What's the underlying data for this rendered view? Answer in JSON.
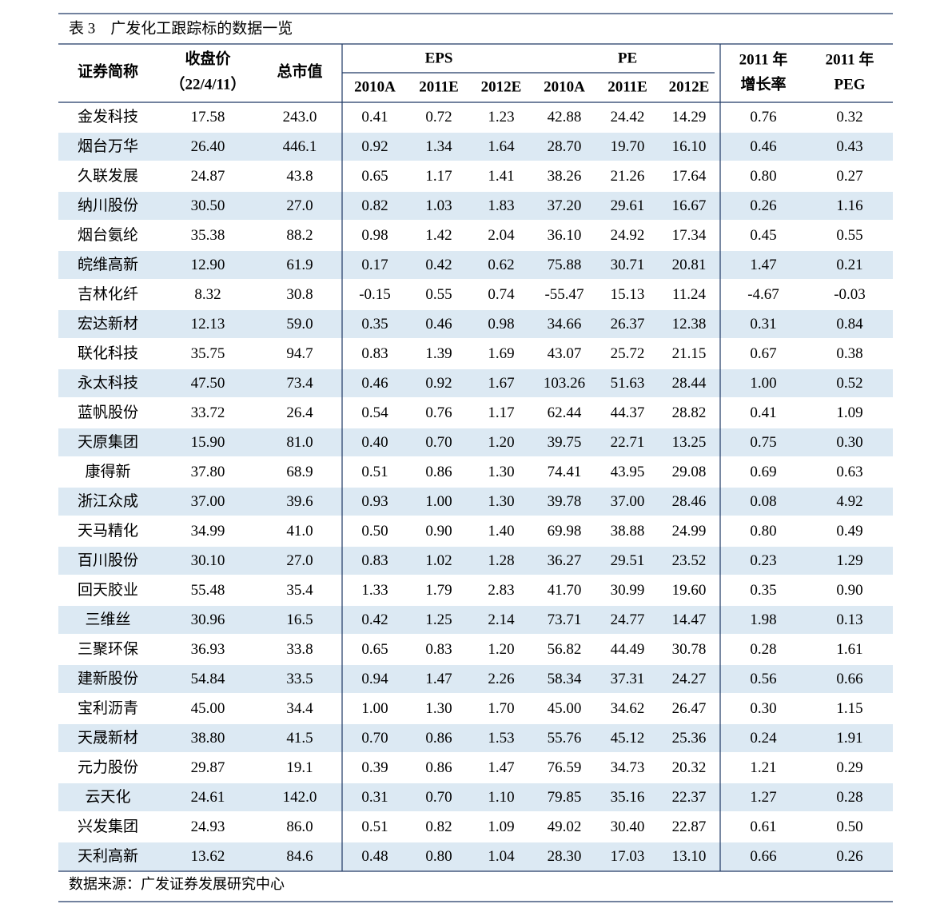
{
  "caption": "表 3　广发化工跟踪标的数据一览",
  "table": {
    "header": {
      "name": "证券简称",
      "price": [
        "收盘价",
        "（22/4/11）"
      ],
      "cap": "总市值",
      "eps": "EPS",
      "pe": "PE",
      "eps_years": [
        "2010A",
        "2011E",
        "2012E"
      ],
      "pe_years": [
        "2010A",
        "2011E",
        "2012E"
      ],
      "growth": [
        "2011 年",
        "增长率"
      ],
      "peg": [
        "2011 年",
        "PEG"
      ]
    },
    "rows": [
      [
        "金发科技",
        "17.58",
        "243.0",
        "0.41",
        "0.72",
        "1.23",
        "42.88",
        "24.42",
        "14.29",
        "0.76",
        "0.32"
      ],
      [
        "烟台万华",
        "26.40",
        "446.1",
        "0.92",
        "1.34",
        "1.64",
        "28.70",
        "19.70",
        "16.10",
        "0.46",
        "0.43"
      ],
      [
        "久联发展",
        "24.87",
        "43.8",
        "0.65",
        "1.17",
        "1.41",
        "38.26",
        "21.26",
        "17.64",
        "0.80",
        "0.27"
      ],
      [
        "纳川股份",
        "30.50",
        "27.0",
        "0.82",
        "1.03",
        "1.83",
        "37.20",
        "29.61",
        "16.67",
        "0.26",
        "1.16"
      ],
      [
        "烟台氨纶",
        "35.38",
        "88.2",
        "0.98",
        "1.42",
        "2.04",
        "36.10",
        "24.92",
        "17.34",
        "0.45",
        "0.55"
      ],
      [
        "皖维高新",
        "12.90",
        "61.9",
        "0.17",
        "0.42",
        "0.62",
        "75.88",
        "30.71",
        "20.81",
        "1.47",
        "0.21"
      ],
      [
        "吉林化纤",
        "8.32",
        "30.8",
        "-0.15",
        "0.55",
        "0.74",
        "-55.47",
        "15.13",
        "11.24",
        "-4.67",
        "-0.03"
      ],
      [
        "宏达新材",
        "12.13",
        "59.0",
        "0.35",
        "0.46",
        "0.98",
        "34.66",
        "26.37",
        "12.38",
        "0.31",
        "0.84"
      ],
      [
        "联化科技",
        "35.75",
        "94.7",
        "0.83",
        "1.39",
        "1.69",
        "43.07",
        "25.72",
        "21.15",
        "0.67",
        "0.38"
      ],
      [
        "永太科技",
        "47.50",
        "73.4",
        "0.46",
        "0.92",
        "1.67",
        "103.26",
        "51.63",
        "28.44",
        "1.00",
        "0.52"
      ],
      [
        "蓝帆股份",
        "33.72",
        "26.4",
        "0.54",
        "0.76",
        "1.17",
        "62.44",
        "44.37",
        "28.82",
        "0.41",
        "1.09"
      ],
      [
        "天原集团",
        "15.90",
        "81.0",
        "0.40",
        "0.70",
        "1.20",
        "39.75",
        "22.71",
        "13.25",
        "0.75",
        "0.30"
      ],
      [
        "康得新",
        "37.80",
        "68.9",
        "0.51",
        "0.86",
        "1.30",
        "74.41",
        "43.95",
        "29.08",
        "0.69",
        "0.63"
      ],
      [
        "浙江众成",
        "37.00",
        "39.6",
        "0.93",
        "1.00",
        "1.30",
        "39.78",
        "37.00",
        "28.46",
        "0.08",
        "4.92"
      ],
      [
        "天马精化",
        "34.99",
        "41.0",
        "0.50",
        "0.90",
        "1.40",
        "69.98",
        "38.88",
        "24.99",
        "0.80",
        "0.49"
      ],
      [
        "百川股份",
        "30.10",
        "27.0",
        "0.83",
        "1.02",
        "1.28",
        "36.27",
        "29.51",
        "23.52",
        "0.23",
        "1.29"
      ],
      [
        "回天胶业",
        "55.48",
        "35.4",
        "1.33",
        "1.79",
        "2.83",
        "41.70",
        "30.99",
        "19.60",
        "0.35",
        "0.90"
      ],
      [
        "三维丝",
        "30.96",
        "16.5",
        "0.42",
        "1.25",
        "2.14",
        "73.71",
        "24.77",
        "14.47",
        "1.98",
        "0.13"
      ],
      [
        "三聚环保",
        "36.93",
        "33.8",
        "0.65",
        "0.83",
        "1.20",
        "56.82",
        "44.49",
        "30.78",
        "0.28",
        "1.61"
      ],
      [
        "建新股份",
        "54.84",
        "33.5",
        "0.94",
        "1.47",
        "2.26",
        "58.34",
        "37.31",
        "24.27",
        "0.56",
        "0.66"
      ],
      [
        "宝利沥青",
        "45.00",
        "34.4",
        "1.00",
        "1.30",
        "1.70",
        "45.00",
        "34.62",
        "26.47",
        "0.30",
        "1.15"
      ],
      [
        "天晟新材",
        "38.80",
        "41.5",
        "0.70",
        "0.86",
        "1.53",
        "55.76",
        "45.12",
        "25.36",
        "0.24",
        "1.91"
      ],
      [
        "元力股份",
        "29.87",
        "19.1",
        "0.39",
        "0.86",
        "1.47",
        "76.59",
        "34.73",
        "20.32",
        "1.21",
        "0.29"
      ],
      [
        "云天化",
        "24.61",
        "142.0",
        "0.31",
        "0.70",
        "1.10",
        "79.85",
        "35.16",
        "22.37",
        "1.27",
        "0.28"
      ],
      [
        "兴发集团",
        "24.93",
        "86.0",
        "0.51",
        "0.82",
        "1.09",
        "49.02",
        "30.40",
        "22.87",
        "0.61",
        "0.50"
      ],
      [
        "天利高新",
        "13.62",
        "84.6",
        "0.48",
        "0.80",
        "1.04",
        "28.30",
        "17.03",
        "13.10",
        "0.66",
        "0.26"
      ]
    ]
  },
  "source": "数据来源：广发证券发展研究中心"
}
